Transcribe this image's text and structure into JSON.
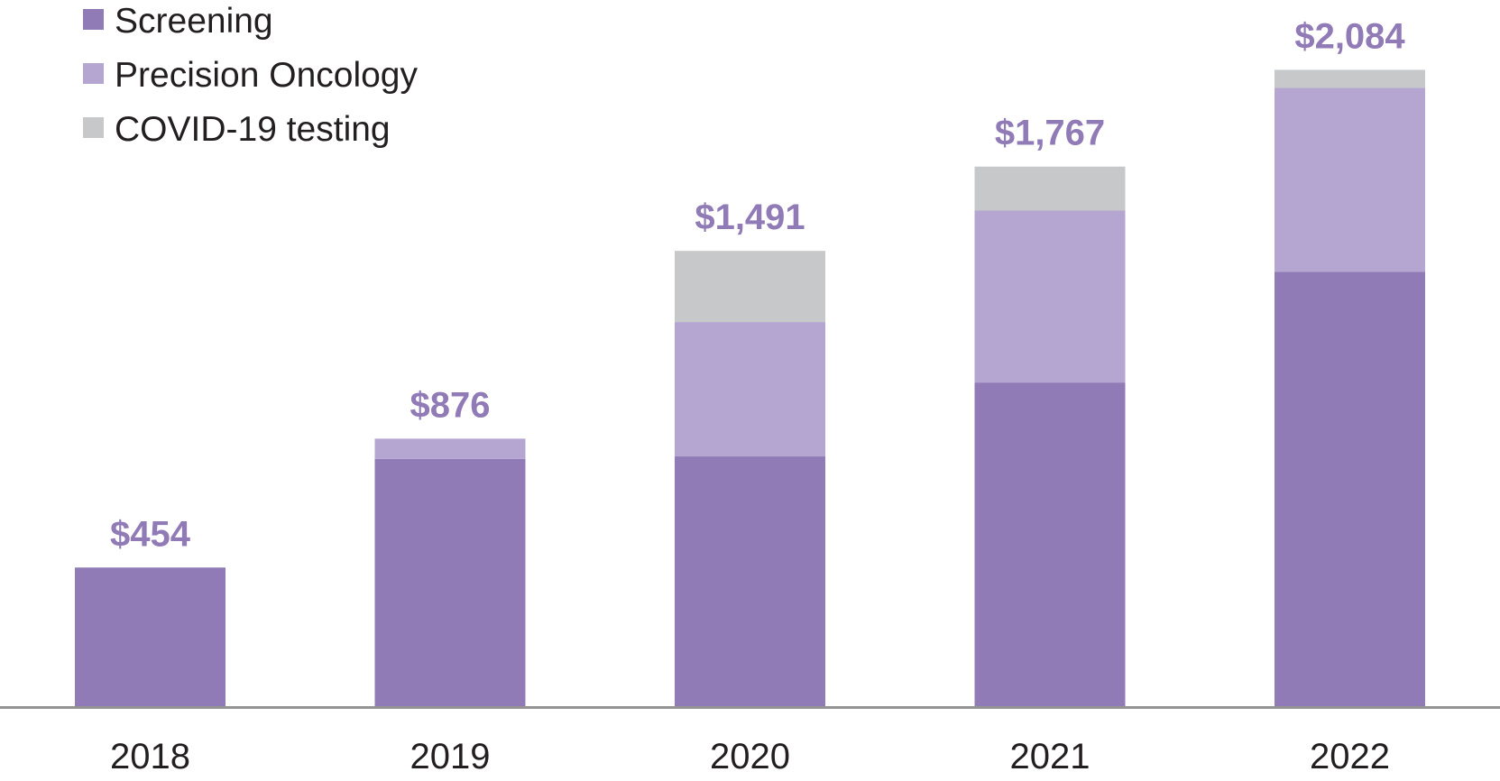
{
  "chart_data": {
    "type": "bar",
    "stacked": true,
    "categories": [
      "2018",
      "2019",
      "2020",
      "2021",
      "2022"
    ],
    "series": [
      {
        "name": "Screening",
        "values": [
          454,
          810,
          818,
          1060,
          1423
        ],
        "color": "#917bb7"
      },
      {
        "name": "Precision Oncology",
        "values": [
          0,
          66,
          440,
          563,
          602
        ],
        "color": "#b5a6d1"
      },
      {
        "name": "COVID-19 testing",
        "values": [
          0,
          0,
          233,
          144,
          59
        ],
        "color": "#c7c8ca"
      }
    ],
    "totals": [
      "$454",
      "$876",
      "$1,491",
      "$1,767",
      "$2,084"
    ],
    "total_values": [
      454,
      876,
      1491,
      1767,
      2084
    ],
    "total_label_color": "#917bb7",
    "axis_color": "#939393",
    "ylim": [
      0,
      2100
    ],
    "title": "",
    "xlabel": "",
    "ylabel": "",
    "grid": false,
    "legend_position": "top-left"
  }
}
